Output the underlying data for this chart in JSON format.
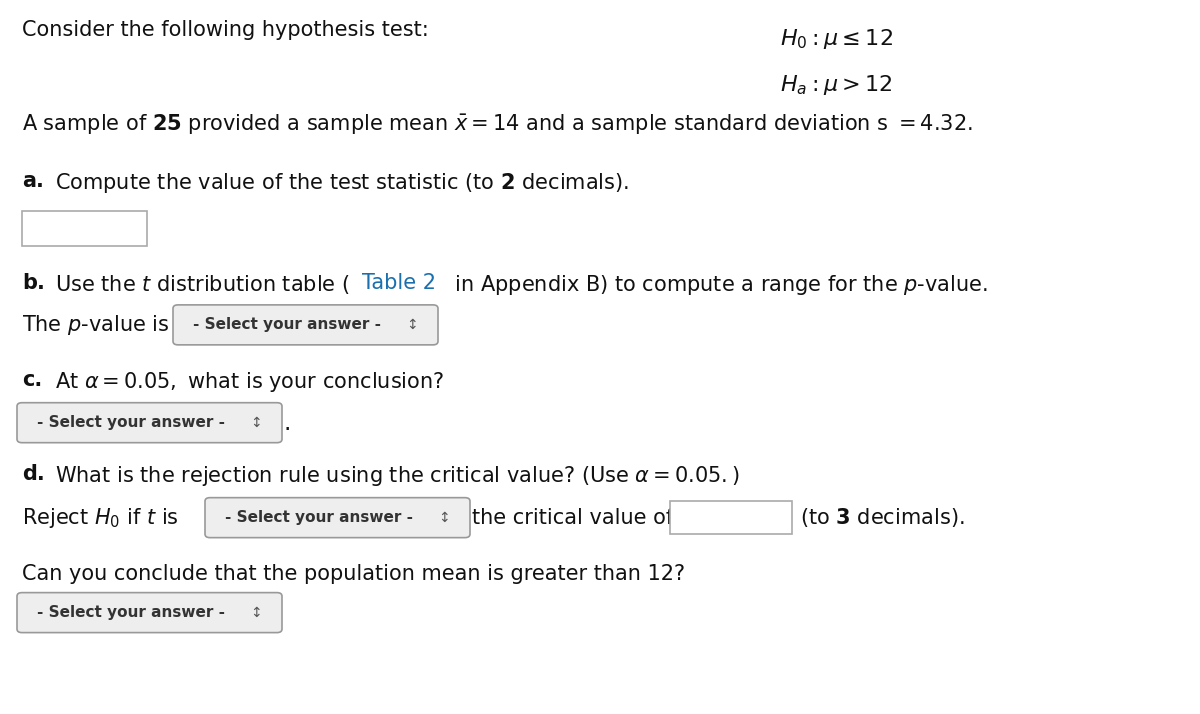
{
  "bg_color": "#ffffff",
  "title_text": "Consider the following hypothesis test:",
  "h0_text": "$H_0: \\mu \\leq 12$",
  "ha_text": "$H_a: \\mu > 12$",
  "sample_line": "A sample of $\\mathbf{25}$ provided a sample mean $\\bar{x} = 14$ and a sample standard deviation s $= 4.32.$",
  "part_a_label": "a.",
  "part_a_text": "Compute the value of the test statistic (to $\\mathbf{2}$ decimals).",
  "part_b_label": "b.",
  "part_b_text": "Use the $t$ distribution table ($\\mathdefault{\\color{blue}{Table\\ 2}}$ in Appendix B) to compute a range for the $p$-value.",
  "pvalue_prefix": "The $p$-value is",
  "part_c_label": "c.",
  "part_c_text": "At $\\alpha = 0.05,$ what is your conclusion?",
  "part_d_label": "d.",
  "part_d_text": "What is the rejection rule using the critical value? (Use $\\alpha = 0.05.$)",
  "reject_prefix": "Reject $H_0$ if $t$ is",
  "critical_suffix": "the critical value of",
  "decimals_text": "(to $\\mathbf{3}$ decimals).",
  "conclude_text": "Can you conclude that the population mean is greater than 12?",
  "select_text": "- Select your answer -",
  "font_size": 15,
  "dropdown_color": "#eeeeee",
  "dropdown_border": "#999999",
  "input_box_color": "#ffffff",
  "input_box_border": "#aaaaaa",
  "blue_color": "#1a6faf"
}
